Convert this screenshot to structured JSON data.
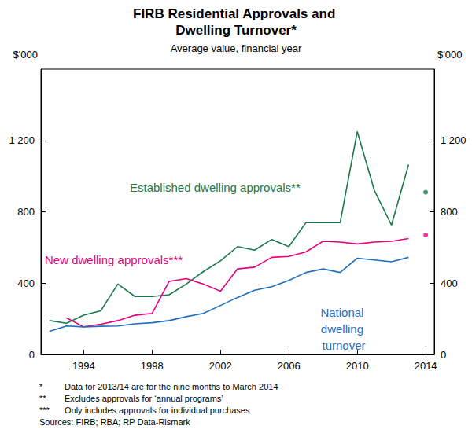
{
  "chart_data": {
    "type": "line",
    "title": "FIRB Residential Approvals and Dwelling Turnover*",
    "subtitle": "Average value, financial year",
    "ylabel": "$'000",
    "x": [
      1992,
      1993,
      1994,
      1995,
      1996,
      1997,
      1998,
      1999,
      2000,
      2001,
      2002,
      2003,
      2004,
      2005,
      2006,
      2007,
      2008,
      2009,
      2010,
      2011,
      2012,
      2013,
      2014
    ],
    "xlim": [
      1991.5,
      2014.5
    ],
    "xticks": [
      1994,
      1998,
      2002,
      2006,
      2010,
      2014
    ],
    "ylim": [
      0,
      1600
    ],
    "yticks": [
      0,
      400,
      800,
      {
        "value": 1200,
        "label": "1 200"
      }
    ],
    "grid": false,
    "series": [
      {
        "name": "Established dwelling approvals**",
        "color": "#1b7a4a",
        "line_style": "solid",
        "values": [
          190,
          175,
          220,
          245,
          395,
          325,
          325,
          335,
          395,
          465,
          525,
          605,
          585,
          645,
          605,
          740,
          740,
          740,
          1250,
          920,
          725,
          1065,
          null
        ]
      },
      {
        "name": "Established dwelling approvals**",
        "color": "#1b7a4a",
        "type": "scatter",
        "marker": "circle",
        "values": [
          null,
          null,
          null,
          null,
          null,
          null,
          null,
          null,
          null,
          null,
          null,
          null,
          null,
          null,
          null,
          null,
          null,
          null,
          null,
          null,
          null,
          null,
          910
        ]
      },
      {
        "name": "New dwelling approvals***",
        "color": "#e6007e",
        "line_style": "solid",
        "values": [
          null,
          205,
          155,
          170,
          190,
          220,
          230,
          410,
          425,
          395,
          355,
          480,
          490,
          545,
          550,
          575,
          635,
          630,
          620,
          630,
          635,
          650,
          null
        ]
      },
      {
        "name": "New dwelling approvals***",
        "color": "#e6007e",
        "type": "scatter",
        "marker": "circle",
        "values": [
          null,
          null,
          null,
          null,
          null,
          null,
          null,
          null,
          null,
          null,
          null,
          null,
          null,
          null,
          null,
          null,
          null,
          null,
          null,
          null,
          null,
          null,
          670
        ]
      },
      {
        "name": "National dwelling turnover",
        "color": "#1f6fbf",
        "line_style": "solid",
        "values": [
          130,
          160,
          155,
          158,
          160,
          172,
          178,
          190,
          212,
          230,
          275,
          320,
          360,
          380,
          415,
          460,
          480,
          460,
          540,
          530,
          520,
          545,
          null
        ]
      }
    ],
    "footnotes": [
      {
        "mark": "*",
        "text": "Data for 2013/14 are for the nine months to March 2014"
      },
      {
        "mark": "**",
        "text": "Excludes approvals for ‘annual programs’"
      },
      {
        "mark": "***",
        "text": "Only includes approvals for individual purchases"
      }
    ],
    "source": "Sources: FIRB; RBA; RP Data-Rismark"
  }
}
